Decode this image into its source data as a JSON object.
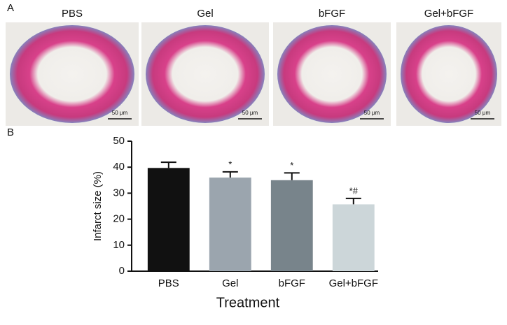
{
  "panel_a": {
    "label": "A",
    "images": [
      {
        "title": "PBS",
        "scale_bar": "50 μm"
      },
      {
        "title": "Gel",
        "scale_bar": "50 μm"
      },
      {
        "title": "bFGF",
        "scale_bar": "50 μm"
      },
      {
        "title": "Gel+bFGF",
        "scale_bar": "50 μm"
      }
    ]
  },
  "panel_b_label": "B",
  "chart_data": {
    "type": "bar",
    "ylabel": "Infarct size (%)",
    "xlabel": "Treatment",
    "categories": [
      "PBS",
      "Gel",
      "bFGF",
      "Gel+bFGF"
    ],
    "values": [
      39.7,
      36,
      35,
      25.7
    ],
    "errors": [
      2.2,
      2.2,
      2.8,
      2.3
    ],
    "annotations": [
      null,
      "*",
      "*",
      "*#"
    ],
    "colors": [
      "#111111",
      "#9ba5ae",
      "#78848b",
      "#ccd6d9"
    ],
    "ylim": [
      0,
      50
    ],
    "yticks": [
      0,
      10,
      20,
      30,
      40,
      50
    ]
  }
}
